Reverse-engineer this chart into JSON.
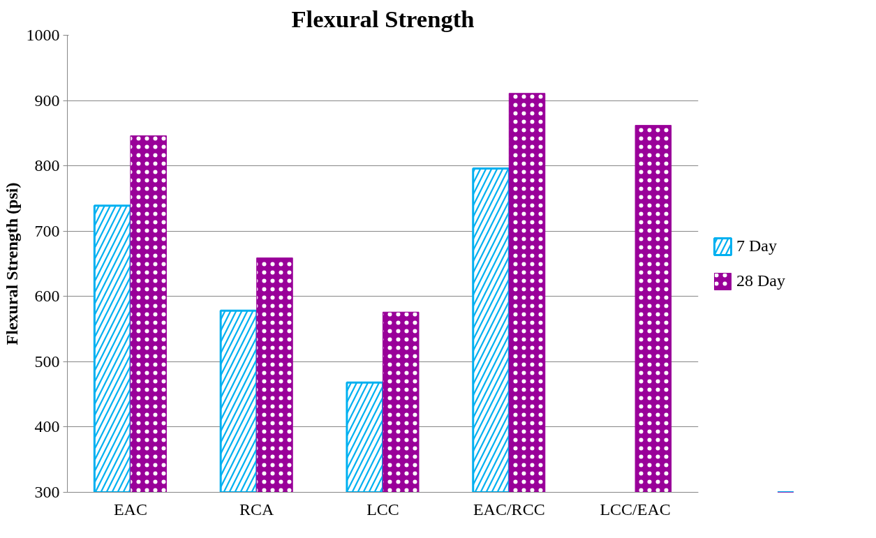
{
  "chart_data": {
    "type": "bar",
    "title": "Flexural Strength",
    "ylabel": "Flexural Strength (psi)",
    "categories": [
      "EAC",
      "RCA",
      "LCC",
      "EAC/RCC",
      "LCC/EAC"
    ],
    "series": [
      {
        "name": "7 Day",
        "color": "#00b0f0",
        "values": [
          739,
          578,
          468,
          796,
          null
        ]
      },
      {
        "name": "28 Day",
        "color": "#990099",
        "values": [
          846,
          659,
          576,
          911,
          862
        ]
      }
    ],
    "ylim": [
      300,
      1000
    ],
    "yticks": [
      300,
      400,
      500,
      600,
      700,
      800,
      900,
      1000
    ],
    "grid": "y",
    "legend": "right"
  }
}
